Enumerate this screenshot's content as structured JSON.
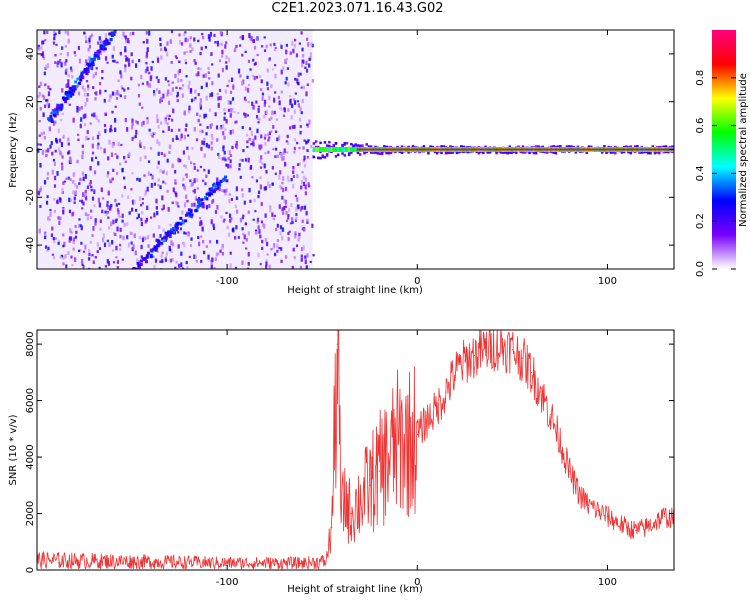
{
  "title": "C2E1.2023.071.16.43.G02",
  "chart_data": [
    {
      "type": "heatmap",
      "xlabel": "Height of straight line (km)",
      "ylabel": "Frequency (Hz)",
      "xlim": [
        -200,
        135
      ],
      "ylim": [
        -50,
        50
      ],
      "xticks": [
        -100,
        0,
        100
      ],
      "yticks": [
        -40,
        -20,
        0,
        20,
        40
      ],
      "colorbar": {
        "label": "Normalized spectral amplitude",
        "range": [
          0,
          1
        ],
        "ticks": [
          0.0,
          0.2,
          0.4,
          0.6,
          0.8
        ],
        "tick_labels": [
          "0.0",
          "0.2",
          "0.4",
          "0.6",
          "0.8"
        ],
        "colors": [
          "#ffffff",
          "#7a00ff",
          "#0000ff",
          "#00ffff",
          "#00ff00",
          "#ffff00",
          "#ff0000",
          "#ff0080"
        ]
      },
      "features": {
        "noise_region_x": [
          -200,
          -55
        ],
        "carrier_frequency": 0,
        "carrier_x": [
          -55,
          135
        ],
        "diagonal_tracks": [
          {
            "x": [
              -195,
              -160
            ],
            "y": [
              12,
              50
            ]
          },
          {
            "x": [
              -150,
              -100
            ],
            "y": [
              -50,
              -10
            ]
          }
        ]
      }
    },
    {
      "type": "line",
      "xlabel": "Height of straight line (km)",
      "ylabel": "SNR (10 * v/v)",
      "xlim": [
        -200,
        135
      ],
      "ylim": [
        0,
        8500
      ],
      "xticks": [
        -100,
        0,
        100
      ],
      "yticks": [
        0,
        2000,
        4000,
        6000,
        8000
      ],
      "color": "#ee3333",
      "x": [
        -200,
        -150,
        -100,
        -60,
        -48,
        -45,
        -42,
        -40,
        -38,
        -35,
        -30,
        -25,
        -20,
        -15,
        -10,
        -5,
        0,
        5,
        10,
        15,
        20,
        25,
        30,
        35,
        40,
        45,
        50,
        55,
        60,
        65,
        70,
        75,
        80,
        85,
        90,
        95,
        100,
        105,
        110,
        115,
        120,
        125,
        130,
        135
      ],
      "y": [
        350,
        300,
        250,
        250,
        300,
        1500,
        8000,
        2000,
        2500,
        2000,
        2500,
        3000,
        3500,
        4000,
        4500,
        4500,
        4800,
        5300,
        5700,
        6300,
        7000,
        7400,
        7600,
        7800,
        7900,
        7900,
        7800,
        7500,
        7000,
        6300,
        5500,
        4600,
        3500,
        2700,
        2300,
        2100,
        1900,
        1700,
        1500,
        1400,
        1500,
        1700,
        1900,
        1800
      ]
    }
  ]
}
